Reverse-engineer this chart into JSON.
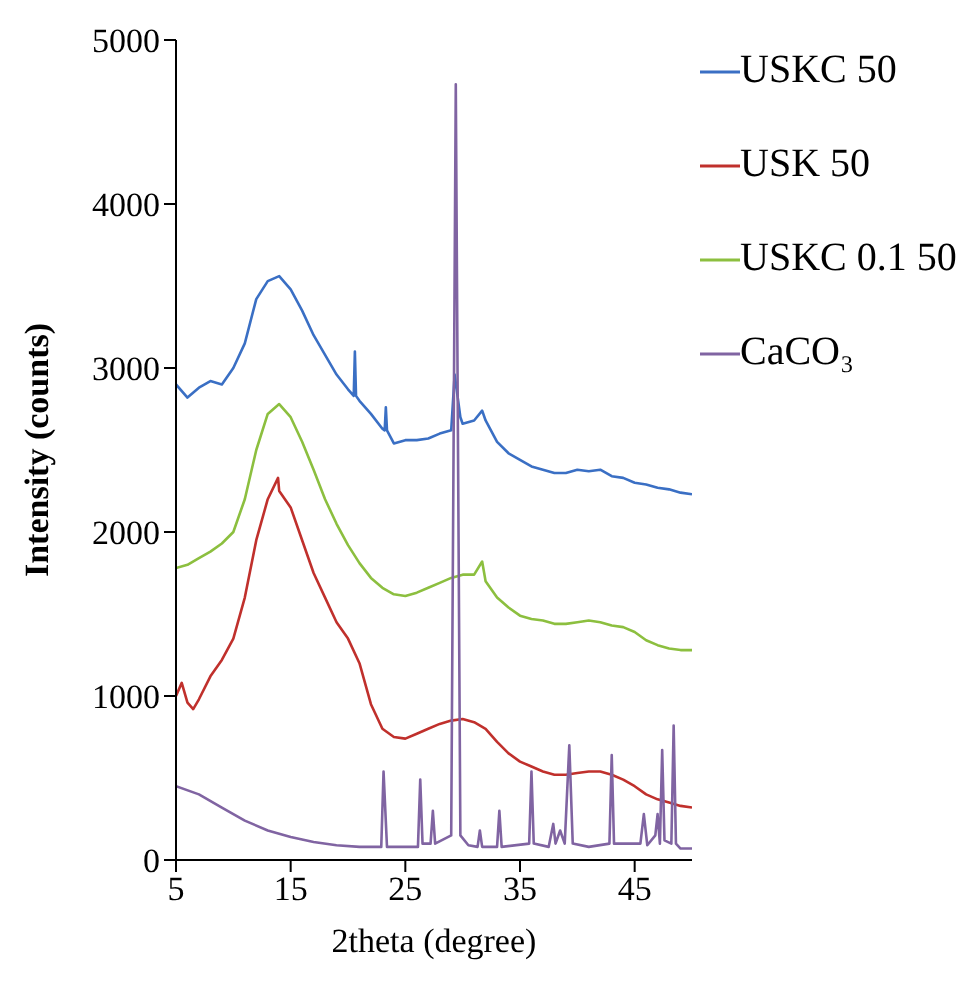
{
  "chart_data": {
    "type": "line",
    "xlabel": "2theta  (degree)",
    "ylabel": "Intensity (counts)",
    "xlim": [
      5,
      50
    ],
    "xticks": [
      5,
      15,
      25,
      35,
      45
    ],
    "ylim": [
      0,
      5000
    ],
    "yticks": [
      0,
      1000,
      2000,
      3000,
      4000,
      5000
    ],
    "grid": false,
    "legend": "top right",
    "marker": "none",
    "line_style": "solid",
    "series": [
      {
        "name": "USKC 50",
        "color": "#3a6fc4",
        "x": [
          5,
          6,
          7,
          8,
          9,
          10,
          11,
          12,
          13,
          14,
          15,
          16,
          17,
          18,
          19,
          20,
          20.5,
          20.6,
          20.7,
          21,
          22,
          23,
          23.2,
          23.3,
          23.4,
          24,
          25,
          26,
          27,
          28,
          29,
          29.3,
          29.8,
          30,
          31,
          31.7,
          32,
          33,
          34,
          35,
          36,
          37,
          38,
          39,
          40,
          41,
          42,
          43,
          44,
          45,
          46,
          47,
          48,
          49,
          50
        ],
        "values": [
          2900,
          2820,
          2880,
          2920,
          2900,
          3000,
          3150,
          3420,
          3530,
          3560,
          3480,
          3350,
          3200,
          3080,
          2960,
          2870,
          2830,
          3100,
          2830,
          2800,
          2720,
          2630,
          2620,
          2760,
          2620,
          2540,
          2560,
          2560,
          2570,
          2600,
          2620,
          2960,
          2700,
          2660,
          2680,
          2740,
          2680,
          2550,
          2480,
          2440,
          2400,
          2380,
          2360,
          2360,
          2380,
          2370,
          2380,
          2340,
          2330,
          2300,
          2290,
          2270,
          2260,
          2240,
          2230
        ]
      },
      {
        "name": "USK 50",
        "color": "#c0302c",
        "x": [
          5,
          5.5,
          6,
          6.5,
          7,
          8,
          9,
          10,
          11,
          12,
          13,
          13.9,
          14,
          15,
          16,
          17,
          18,
          19,
          20,
          21,
          22,
          23,
          24,
          25,
          26,
          27,
          28,
          29,
          30,
          31,
          32,
          33,
          34,
          35,
          36,
          37,
          38,
          39,
          40,
          41,
          42,
          43,
          44,
          45,
          46,
          47,
          48,
          49,
          50
        ],
        "values": [
          1000,
          1080,
          960,
          920,
          980,
          1120,
          1220,
          1350,
          1600,
          1950,
          2200,
          2330,
          2250,
          2150,
          1950,
          1750,
          1600,
          1450,
          1350,
          1200,
          950,
          800,
          750,
          740,
          770,
          800,
          830,
          850,
          860,
          840,
          800,
          720,
          650,
          600,
          570,
          540,
          520,
          520,
          530,
          540,
          540,
          520,
          490,
          450,
          400,
          370,
          350,
          330,
          320
        ]
      },
      {
        "name": "USKC 0.1 50",
        "color": "#8cbf3f",
        "x": [
          5,
          6,
          7,
          8,
          9,
          10,
          11,
          12,
          13,
          14,
          15,
          16,
          17,
          18,
          19,
          20,
          21,
          22,
          23,
          24,
          25,
          26,
          27,
          28,
          29,
          30,
          31,
          31.7,
          32,
          33,
          34,
          35,
          36,
          37,
          38,
          39,
          40,
          41,
          42,
          43,
          44,
          45,
          46,
          47,
          48,
          49,
          50
        ],
        "values": [
          1780,
          1800,
          1840,
          1880,
          1930,
          2000,
          2200,
          2500,
          2720,
          2780,
          2700,
          2550,
          2380,
          2200,
          2050,
          1920,
          1810,
          1720,
          1660,
          1620,
          1610,
          1630,
          1660,
          1690,
          1720,
          1740,
          1740,
          1820,
          1700,
          1600,
          1540,
          1490,
          1470,
          1460,
          1440,
          1440,
          1450,
          1460,
          1450,
          1430,
          1420,
          1390,
          1340,
          1310,
          1290,
          1280,
          1280
        ]
      },
      {
        "name": "CaCO₃",
        "color": "#8064a2",
        "x": [
          5,
          7,
          9,
          11,
          13,
          15,
          17,
          19,
          21,
          22.9,
          23.1,
          23.4,
          26.1,
          26.3,
          26.5,
          27.2,
          27.4,
          27.6,
          29,
          29.4,
          29.8,
          30.5,
          31.3,
          31.5,
          31.7,
          33,
          33.2,
          33.4,
          35.8,
          36,
          36.2,
          37.5,
          37.9,
          38.1,
          38.5,
          38.9,
          39.3,
          39.6,
          41,
          42.8,
          43,
          43.2,
          45.5,
          45.8,
          46.1,
          46.8,
          47,
          47.2,
          47.4,
          47.6,
          48.2,
          48.4,
          48.6,
          49,
          50
        ],
        "values": [
          450,
          400,
          320,
          240,
          180,
          140,
          110,
          90,
          80,
          80,
          540,
          80,
          80,
          490,
          100,
          100,
          300,
          100,
          150,
          4730,
          150,
          90,
          80,
          180,
          80,
          80,
          300,
          80,
          100,
          540,
          100,
          80,
          220,
          100,
          180,
          100,
          700,
          100,
          80,
          100,
          640,
          100,
          100,
          280,
          90,
          150,
          280,
          100,
          670,
          120,
          100,
          820,
          100,
          70,
          70
        ]
      }
    ]
  }
}
